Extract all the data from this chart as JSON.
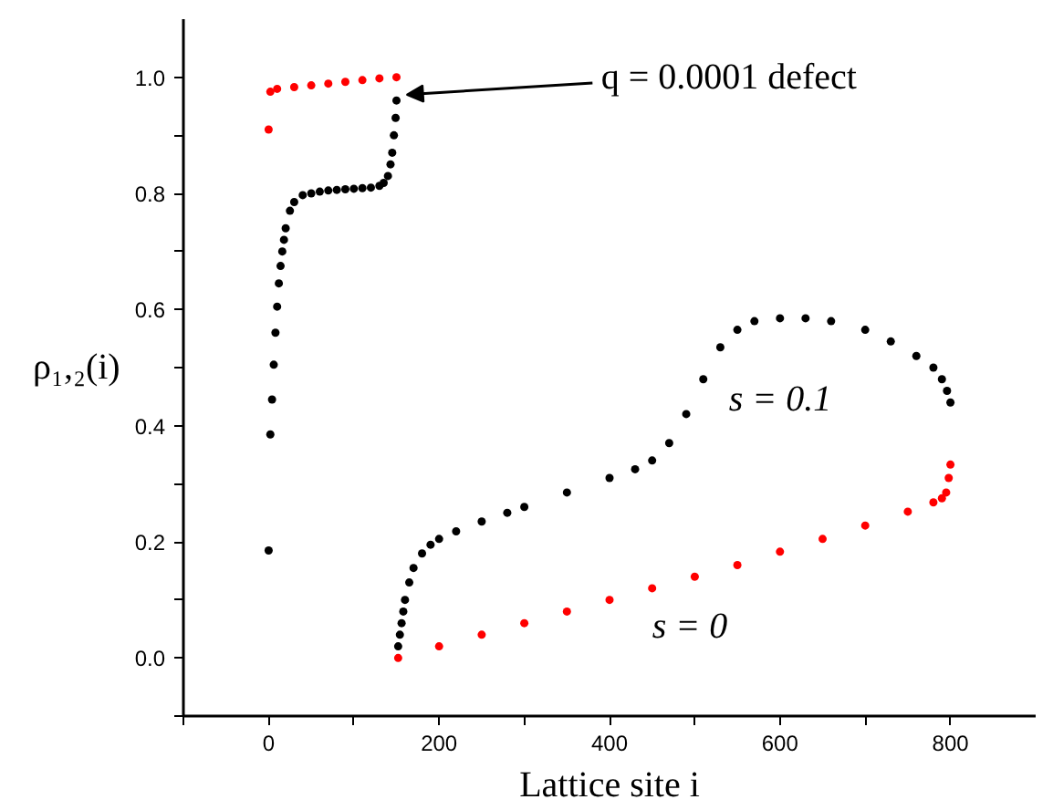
{
  "chart_data": {
    "type": "scatter",
    "xlabel": "Lattice site i",
    "ylabel": "ρ₁,₂(i)",
    "xlim": [
      -100,
      900
    ],
    "ylim": [
      -0.1,
      1.1
    ],
    "xticks": [
      {
        "value": -100,
        "label": null
      },
      0,
      {
        "value": 100,
        "label": null
      },
      200,
      {
        "value": 300,
        "label": null
      },
      400,
      {
        "value": 500,
        "label": null
      },
      600,
      {
        "value": 700,
        "label": null
      },
      800
    ],
    "yticks": [
      {
        "value": -0.1,
        "label": null
      },
      {
        "value": 0,
        "label": "0.0"
      },
      {
        "value": 0.1,
        "label": null
      },
      0.2,
      {
        "value": 0.3,
        "label": null
      },
      0.4,
      {
        "value": 0.5,
        "label": null
      },
      0.6,
      {
        "value": 0.7,
        "label": null
      },
      0.8,
      {
        "value": 0.9,
        "label": null
      },
      {
        "value": 1.0,
        "label": "1.0"
      }
    ],
    "marker": "circle",
    "grid": false,
    "series": [
      {
        "name": "s = 0.1",
        "color": "#000000",
        "x": [
          0,
          2,
          4,
          6,
          8,
          10,
          12,
          14,
          16,
          18,
          20,
          25,
          30,
          40,
          50,
          60,
          70,
          80,
          90,
          100,
          110,
          120,
          130,
          135,
          140,
          143,
          145,
          147,
          149,
          150,
          152,
          154,
          156,
          158,
          160,
          165,
          170,
          180,
          190,
          200,
          220,
          250,
          280,
          300,
          350,
          400,
          430,
          450,
          470,
          490,
          510,
          530,
          550,
          570,
          600,
          630,
          660,
          700,
          730,
          760,
          780,
          790,
          796,
          800
        ],
        "values": [
          0.185,
          0.385,
          0.445,
          0.505,
          0.56,
          0.605,
          0.645,
          0.675,
          0.7,
          0.72,
          0.74,
          0.77,
          0.785,
          0.797,
          0.8,
          0.803,
          0.805,
          0.806,
          0.807,
          0.808,
          0.809,
          0.81,
          0.813,
          0.818,
          0.83,
          0.85,
          0.87,
          0.9,
          0.93,
          0.96,
          0.02,
          0.04,
          0.06,
          0.08,
          0.1,
          0.13,
          0.155,
          0.18,
          0.195,
          0.205,
          0.218,
          0.235,
          0.25,
          0.26,
          0.285,
          0.31,
          0.325,
          0.34,
          0.37,
          0.42,
          0.48,
          0.535,
          0.565,
          0.58,
          0.585,
          0.585,
          0.58,
          0.565,
          0.545,
          0.52,
          0.5,
          0.48,
          0.46,
          0.44
        ]
      },
      {
        "name": "s = 0",
        "color": "#ff0000",
        "x": [
          0,
          2,
          10,
          30,
          50,
          70,
          90,
          110,
          130,
          150,
          152,
          200,
          250,
          300,
          350,
          400,
          450,
          500,
          550,
          600,
          650,
          700,
          750,
          780,
          790,
          795,
          798,
          800
        ],
        "values": [
          0.91,
          0.975,
          0.98,
          0.983,
          0.986,
          0.989,
          0.992,
          0.995,
          0.998,
          1.0,
          0.0,
          0.02,
          0.04,
          0.06,
          0.08,
          0.1,
          0.12,
          0.14,
          0.16,
          0.183,
          0.205,
          0.228,
          0.252,
          0.268,
          0.275,
          0.285,
          0.31,
          0.333
        ]
      }
    ],
    "annotations": [
      {
        "text": "q = 0.0001 defect",
        "x": 150,
        "y": 0.97
      }
    ]
  }
}
